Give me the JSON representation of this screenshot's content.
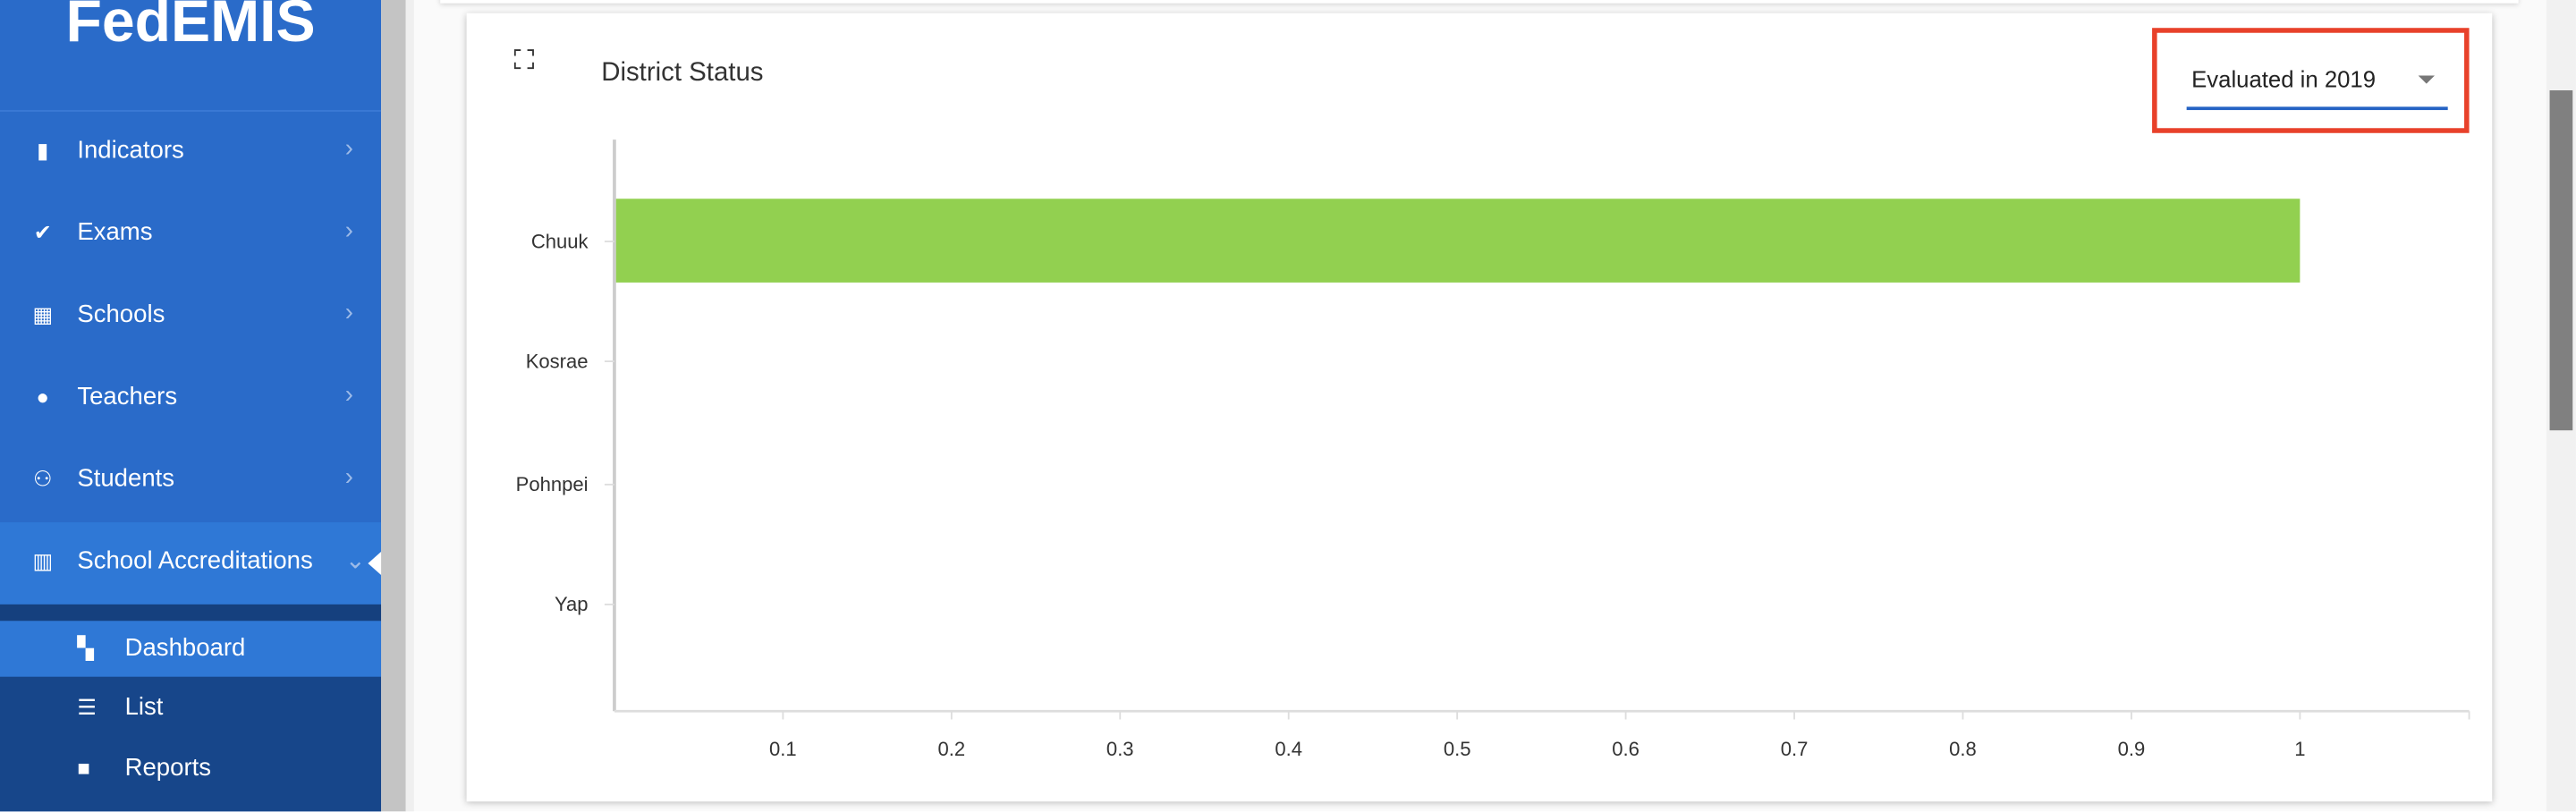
{
  "sidebar": {
    "brand": "FedEMIS",
    "items": [
      {
        "label": "Indicators",
        "icon": "book-icon"
      },
      {
        "label": "Exams",
        "icon": "clipboard-check-icon"
      },
      {
        "label": "Schools",
        "icon": "building-icon"
      },
      {
        "label": "Teachers",
        "icon": "person-icon"
      },
      {
        "label": "Students",
        "icon": "people-icon"
      },
      {
        "label": "School Accreditations",
        "icon": "bar-chart-icon",
        "expanded": true
      }
    ],
    "subitems": [
      {
        "label": "Dashboard",
        "icon": "dashboard-icon",
        "active": true
      },
      {
        "label": "List",
        "icon": "list-icon"
      },
      {
        "label": "Reports",
        "icon": "folder-icon"
      }
    ]
  },
  "card": {
    "title": "District Status",
    "dropdown": {
      "value": "Evaluated in 2019"
    }
  },
  "colors": {
    "sidebar": "#2a6bc9",
    "submenu": "#17468a",
    "bar": "#92d050",
    "highlight": "#e8412a",
    "underline": "#2563c4"
  },
  "chart_data": {
    "type": "bar",
    "orientation": "horizontal",
    "title": "District Status",
    "categories": [
      "Chuuk",
      "Kosrae",
      "Pohnpei",
      "Yap"
    ],
    "values": [
      1,
      0,
      0,
      0
    ],
    "xlim": [
      0,
      1.1
    ],
    "xticks": [
      "0.1",
      "0.2",
      "0.3",
      "0.4",
      "0.5",
      "0.6",
      "0.7",
      "0.8",
      "0.9",
      "1"
    ],
    "grid": false
  }
}
